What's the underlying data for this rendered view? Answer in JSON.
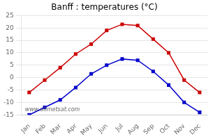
{
  "chart_data": {
    "type": "line",
    "title": "Banff : temperatures (°C)",
    "categories": [
      "Jan",
      "Feb",
      "Mar",
      "Apr",
      "May",
      "Jun",
      "Jul",
      "Aug",
      "Sep",
      "Oct",
      "Nov",
      "Dec"
    ],
    "series": [
      {
        "color": "#cc0000",
        "marker": "square",
        "values": [
          -6,
          -1,
          4,
          9.5,
          13.5,
          19,
          21.5,
          21,
          15.5,
          10,
          -1,
          -6
        ]
      },
      {
        "color": "#0000cc",
        "marker": "square",
        "values": [
          -15,
          -12,
          -9,
          -4,
          1.5,
          5,
          7.5,
          7,
          2.5,
          -3,
          -10,
          -14
        ]
      }
    ],
    "ylim": [
      -15,
      25
    ],
    "yticks": [
      -15,
      -10,
      -5,
      0,
      5,
      10,
      15,
      20,
      25
    ],
    "grid": "y",
    "annotation": "www.allmetsat.com"
  }
}
